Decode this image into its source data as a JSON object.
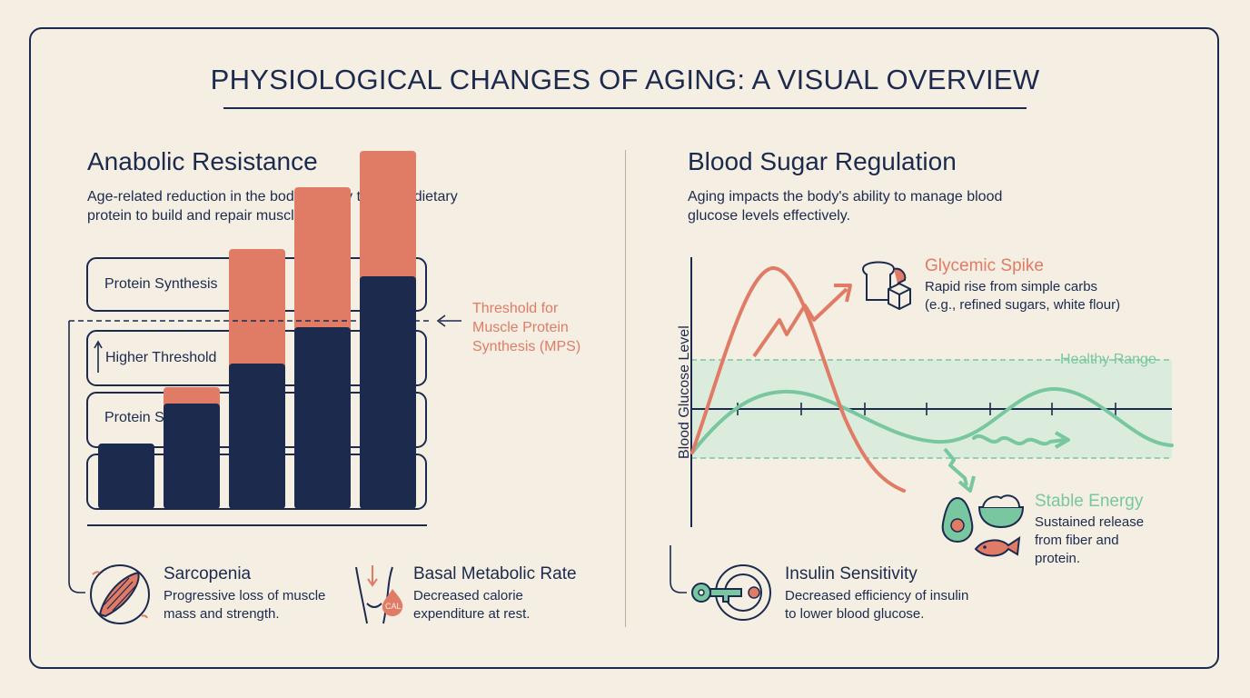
{
  "title": "PHYSIOLOGICAL CHANGES OF AGING: A VISUAL OVERVIEW",
  "left": {
    "heading": "Anabolic Resistance",
    "description": "Age-related reduction in the body's ability to utilize dietary protein to build and repair muscle.",
    "box_label_top": "Protein Synthesis",
    "box_label_mid": "Higher Threshold",
    "box_label_low": "Protein Synthesis",
    "threshold_label": [
      "Threshold for",
      "Muscle Protein",
      "Synthesis (MPS)"
    ],
    "bars": [
      {
        "navy": 0.18,
        "salmon": 0.0
      },
      {
        "navy": 0.29,
        "salmon": 0.06
      },
      {
        "navy": 0.4,
        "salmon": 0.33
      },
      {
        "navy": 0.5,
        "salmon": 0.4
      },
      {
        "navy": 0.64,
        "salmon": 0.36
      }
    ],
    "sarcopenia": {
      "title": "Sarcopenia",
      "desc": [
        "Progressive loss of muscle",
        "mass and strength."
      ]
    },
    "bmr": {
      "title": "Basal Metabolic Rate",
      "desc": [
        "Decreased calorie",
        "expenditure at rest."
      ],
      "badge": "CAL"
    }
  },
  "right": {
    "heading": "Blood Sugar Regulation",
    "description": "Aging impacts the body's ability to manage blood glucose levels effectively.",
    "y_axis_label": "Blood Glucose Level",
    "healthy_range_label": "Healthy Range",
    "spike": {
      "title": "Glycemic Spike",
      "desc": [
        "Rapid rise from simple carbs",
        "(e.g., refined sugars, white flour)"
      ]
    },
    "stable": {
      "title": "Stable Energy",
      "desc": [
        "Sustained release",
        "from fiber and",
        "protein."
      ]
    },
    "insulin": {
      "title": "Insulin Sensitivity",
      "desc": [
        "Decreased efficiency of insulin",
        "to lower blood glucose."
      ]
    }
  },
  "colors": {
    "navy": "#1c2a4e",
    "salmon": "#e07b66",
    "green": "#78c7a1",
    "background": "#f4efe2"
  }
}
